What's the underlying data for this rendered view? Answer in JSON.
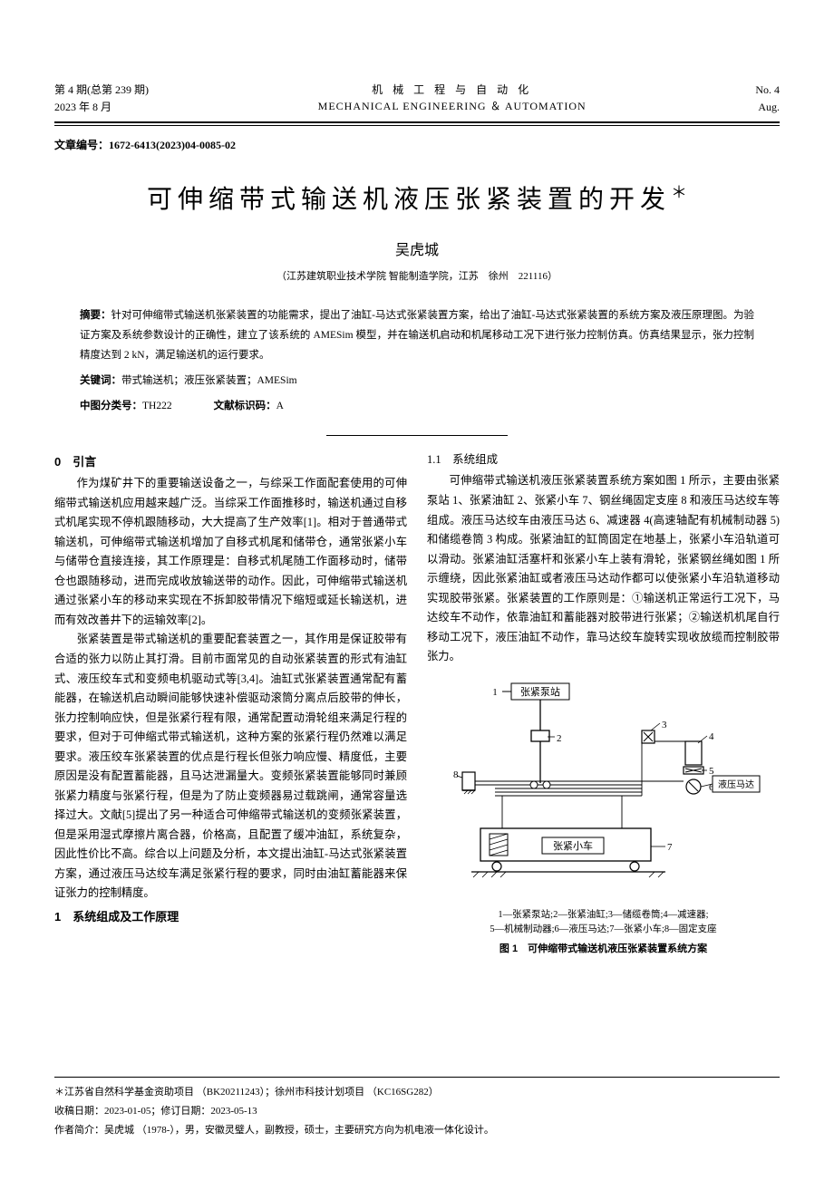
{
  "header": {
    "issue_line1": "第 4 期(总第 239 期)",
    "issue_line2": "2023 年 8 月",
    "journal_cn": "机 械 工 程 与 自 动 化",
    "journal_en": "MECHANICAL ENGINEERING ＆ AUTOMATION",
    "right_line1": "No. 4",
    "right_line2": "Aug."
  },
  "article_id_label": "文章编号",
  "article_id": "：1672-6413(2023)04-0085-02",
  "title": "可伸缩带式输送机液压张紧装置的开发",
  "title_star": "＊",
  "author": "吴虎城",
  "affiliation": "（江苏建筑职业技术学院 智能制造学院，江苏　徐州　221116）",
  "abstract_label": "摘要：",
  "abstract_text": "针对可伸缩带式输送机张紧装置的功能需求，提出了油缸-马达式张紧装置方案，给出了油缸-马达式张紧装置的系统方案及液压原理图。为验证方案及系统参数设计的正确性，建立了该系统的 AMESim 模型，并在输送机启动和机尾移动工况下进行张力控制仿真。仿真结果显示，张力控制精度达到 2 kN，满足输送机的运行要求。",
  "keywords_label": "关键词：",
  "keywords_text": "带式输送机；液压张紧装置；AMESim",
  "clc_label": "中图分类号：",
  "clc_value": "TH222",
  "doc_code_label": "文献标识码：",
  "doc_code_value": "A",
  "section0_title": "0　引言",
  "para1": "作为煤矿井下的重要输送设备之一，与综采工作面配套使用的可伸缩带式输送机应用越来越广泛。当综采工作面推移时，输送机通过自移式机尾实现不停机跟随移动，大大提高了生产效率[1]。相对于普通带式输送机，可伸缩带式输送机增加了自移式机尾和储带仓，通常张紧小车与储带仓直接连接，其工作原理是：自移式机尾随工作面移动时，储带仓也跟随移动，进而完成收放输送带的动作。因此，可伸缩带式输送机通过张紧小车的移动来实现在不拆卸胶带情况下缩短或延长输送机，进而有效改善井下的运输效率[2]。",
  "para2": "张紧装置是带式输送机的重要配套装置之一，其作用是保证胶带有合适的张力以防止其打滑。目前市面常见的自动张紧装置的形式有油缸式、液压绞车式和变频电机驱动式等[3,4]。油缸式张紧装置通常配有蓄能器，在输送机启动瞬间能够快速补偿驱动滚筒分离点后胶带的伸长，张力控制响应快，但是张紧行程有限，通常配置动滑轮组来满足行程的要求，但对于可伸缩式带式输送机，这种方案的张紧行程仍然难以满足要求。液压绞车张紧装置的优点是行程长但张力响应慢、精度低，主要原因是没有配置蓄能器，且马达泄漏量大。变频张紧装置能够同时兼顾张紧力精度与张紧行程，但是为了防止变频器易过载跳闸，通常容量选择过大。文献[5]提出了另一种适合可伸缩带式输送机的变频张紧装置，但是采用湿式摩擦片离合器，价格高，且配置了缓冲油缸，系统复杂，因此性价比不高。综合以上问题及分析，本文提出油缸-马达式张紧装置方案，通过液压马达绞车满足张紧行程的要求，同时由油缸蓄能器来保证张力的控制精度。",
  "section1_title": "1　系统组成及工作原理",
  "subsection11_title": "1.1　系统组成",
  "para3": "可伸缩带式输送机液压张紧装置系统方案如图 1 所示，主要由张紧泵站 1、张紧油缸 2、张紧小车 7、钢丝绳固定支座 8 和液压马达绞车等组成。液压马达绞车由液压马达 6、减速器 4(高速轴配有机械制动器 5)和储缆卷筒 3 构成。张紧油缸的缸筒固定在地基上，张紧小车沿轨道可以滑动。张紧油缸活塞杆和张紧小车上装有滑轮，张紧钢丝绳如图 1 所示缠绕，因此张紧油缸或者液压马达动作都可以使张紧小车沿轨道移动实现胶带张紧。张紧装置的工作原则是：①输送机正常运行工况下，马达绞车不动作，依靠油缸和蓄能器对胶带进行张紧；②输送机机尾自行移动工况下，液压油缸不动作，靠马达绞车旋转实现收放缆而控制胶带张力。",
  "figure": {
    "labels": {
      "pump_station": "张紧泵站",
      "hydraulic_motor": "液压马达",
      "cart": "张紧小车",
      "num1": "1",
      "num2": "2",
      "num3": "3",
      "num4": "4",
      "num5": "5",
      "num6": "6",
      "num7": "7",
      "num8": "8"
    },
    "colors": {
      "stroke": "#000000",
      "fill_box": "#ffffff",
      "hatch": "#000000"
    },
    "caption_parts": "1—张紧泵站;2—张紧油缸;3—储缆卷筒;4—减速器;\n5—机械制动器;6—液压马达;7—张紧小车;8—固定支座",
    "caption_main": "图 1　可伸缩带式输送机液压张紧装置系统方案"
  },
  "footnotes": {
    "funding": "＊江苏省自然科学基金资助项目 （BK20211243）；徐州市科技计划项目 （KC16SG282）",
    "dates": "收稿日期：2023-01-05；修订日期：2023-05-13",
    "author_bio": "作者简介：吴虎城 （1978-），男，安徽灵璧人，副教授，硕士，主要研究方向为机电液一体化设计。"
  }
}
